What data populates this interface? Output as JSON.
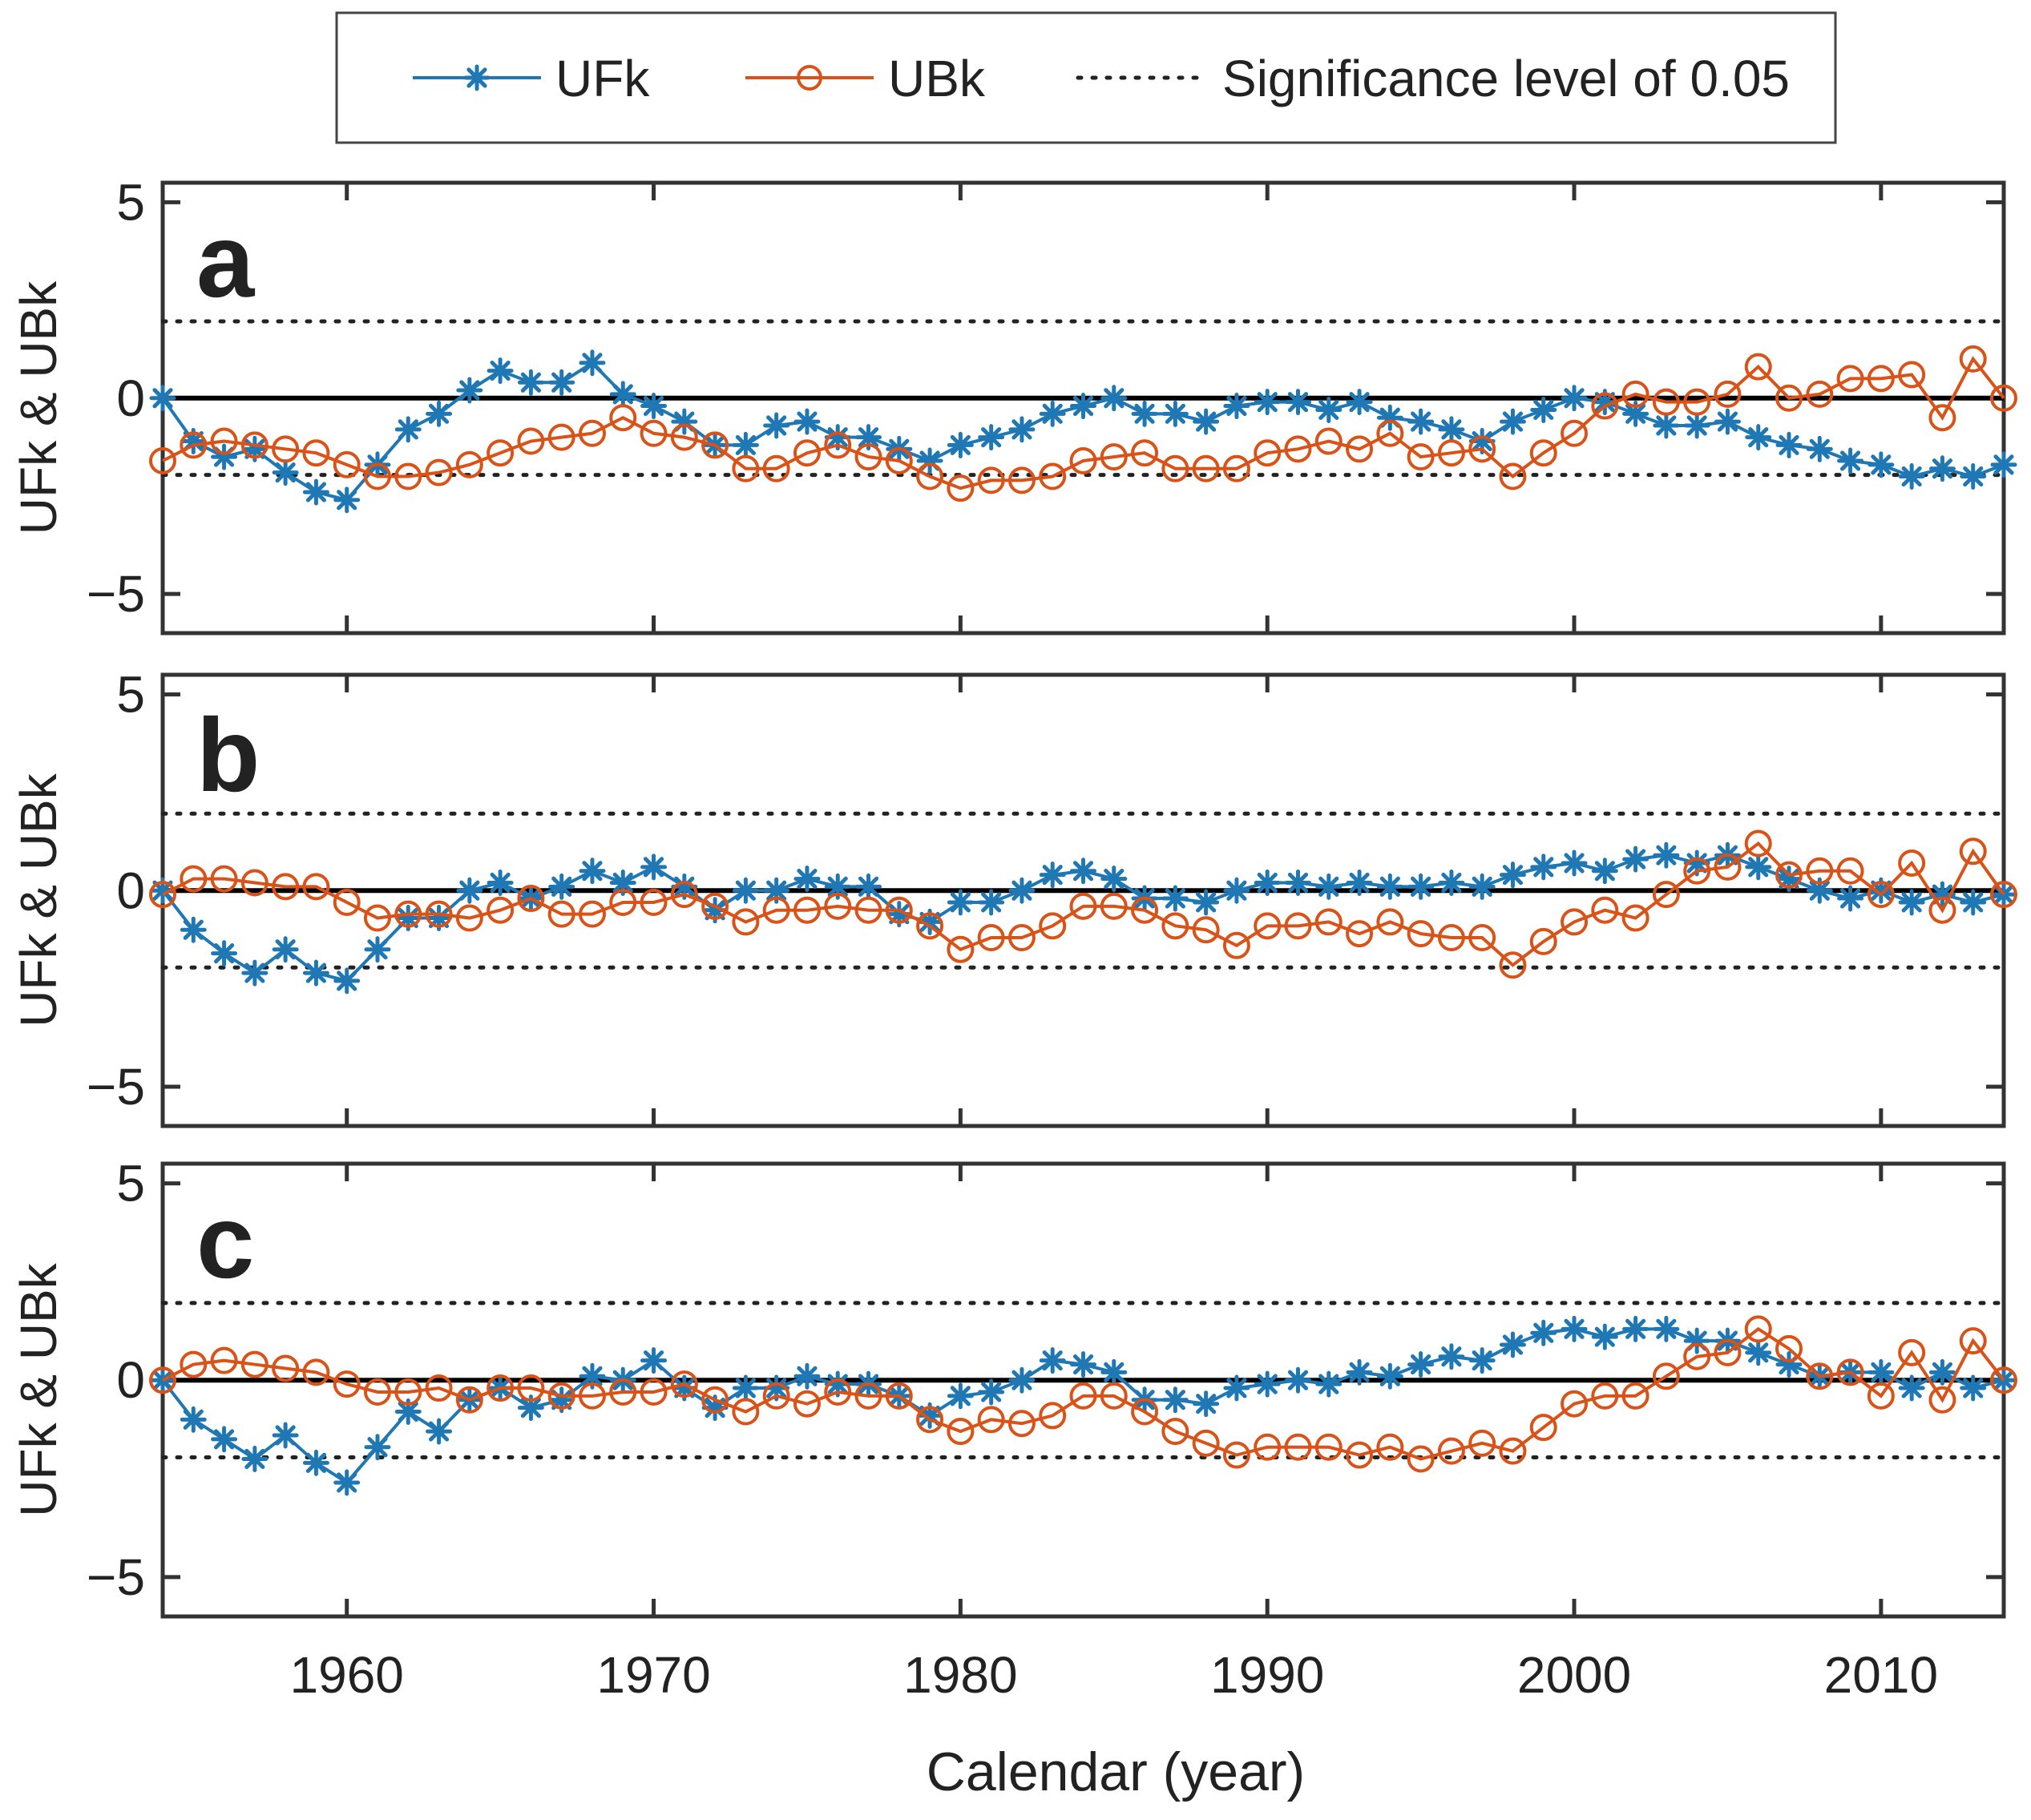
{
  "legend": {
    "ufk_label": "UFk",
    "ubk_label": "UBk",
    "sig_label": "Significance level of 0.05"
  },
  "xaxis": {
    "label": "Calendar (year)",
    "ticks": [
      1960,
      1970,
      1980,
      1990,
      2000,
      2010
    ],
    "tick_labels": [
      "1960",
      "1970",
      "1980",
      "1990",
      "2000",
      "2010"
    ]
  },
  "colors": {
    "ufk": "#1f77b4",
    "ubk": "#d95319",
    "axes": "#333333",
    "zero_line": "#000000"
  },
  "chart_data": [
    {
      "type": "line",
      "panel": "a",
      "title": "",
      "xlabel": "",
      "ylabel": "UFk & UBk",
      "xlim": [
        1954,
        2014
      ],
      "ylim": [
        -6,
        5.5
      ],
      "yticks": [
        -5,
        0,
        5
      ],
      "ytick_labels": [
        "−5",
        "0",
        "5"
      ],
      "significance_levels": [
        1.96,
        -1.96
      ],
      "x": [
        1954,
        1955,
        1956,
        1957,
        1958,
        1959,
        1960,
        1961,
        1962,
        1963,
        1964,
        1965,
        1966,
        1967,
        1968,
        1969,
        1970,
        1971,
        1972,
        1973,
        1974,
        1975,
        1976,
        1977,
        1978,
        1979,
        1980,
        1981,
        1982,
        1983,
        1984,
        1985,
        1986,
        1987,
        1988,
        1989,
        1990,
        1991,
        1992,
        1993,
        1994,
        1995,
        1996,
        1997,
        1998,
        1999,
        2000,
        2001,
        2002,
        2003,
        2004,
        2005,
        2006,
        2007,
        2008,
        2009,
        2010,
        2011,
        2012,
        2013,
        2014
      ],
      "series": [
        {
          "name": "UFk",
          "values": [
            0,
            -1.1,
            -1.5,
            -1.3,
            -1.9,
            -2.4,
            -2.6,
            -1.7,
            -0.8,
            -0.4,
            0.2,
            0.7,
            0.4,
            0.4,
            0.9,
            0.1,
            -0.2,
            -0.6,
            -1.2,
            -1.2,
            -0.7,
            -0.6,
            -1.0,
            -1.0,
            -1.3,
            -1.6,
            -1.2,
            -1.0,
            -0.8,
            -0.4,
            -0.2,
            0.0,
            -0.4,
            -0.4,
            -0.6,
            -0.2,
            -0.1,
            -0.1,
            -0.3,
            -0.1,
            -0.5,
            -0.6,
            -0.8,
            -1.1,
            -0.6,
            -0.3,
            0.0,
            -0.1,
            -0.4,
            -0.7,
            -0.7,
            -0.6,
            -1.0,
            -1.2,
            -1.3,
            -1.6,
            -1.7,
            -2.0,
            -1.8,
            -2.0,
            -1.7
          ]
        },
        {
          "name": "UBk",
          "values": [
            -1.6,
            -1.2,
            -1.1,
            -1.2,
            -1.3,
            -1.4,
            -1.7,
            -2.0,
            -2.0,
            -1.9,
            -1.7,
            -1.4,
            -1.1,
            -1.0,
            -0.9,
            -0.5,
            -0.9,
            -1.0,
            -1.2,
            -1.8,
            -1.8,
            -1.4,
            -1.2,
            -1.5,
            -1.6,
            -2.0,
            -2.3,
            -2.1,
            -2.1,
            -2.0,
            -1.6,
            -1.5,
            -1.4,
            -1.8,
            -1.8,
            -1.8,
            -1.4,
            -1.3,
            -1.1,
            -1.3,
            -0.9,
            -1.5,
            -1.4,
            -1.3,
            -2.0,
            -1.4,
            -0.9,
            -0.2,
            0.1,
            -0.1,
            -0.1,
            0.1,
            0.8,
            0.0,
            0.1,
            0.5,
            0.5,
            0.6,
            -0.5,
            1.0,
            0.0
          ]
        }
      ]
    },
    {
      "type": "line",
      "panel": "b",
      "title": "",
      "xlabel": "",
      "ylabel": "UFk & UBk",
      "xlim": [
        1954,
        2014
      ],
      "ylim": [
        -6,
        5.5
      ],
      "yticks": [
        -5,
        0,
        5
      ],
      "ytick_labels": [
        "−5",
        "0",
        "5"
      ],
      "significance_levels": [
        1.96,
        -1.96
      ],
      "x": [
        1954,
        1955,
        1956,
        1957,
        1958,
        1959,
        1960,
        1961,
        1962,
        1963,
        1964,
        1965,
        1966,
        1967,
        1968,
        1969,
        1970,
        1971,
        1972,
        1973,
        1974,
        1975,
        1976,
        1977,
        1978,
        1979,
        1980,
        1981,
        1982,
        1983,
        1984,
        1985,
        1986,
        1987,
        1988,
        1989,
        1990,
        1991,
        1992,
        1993,
        1994,
        1995,
        1996,
        1997,
        1998,
        1999,
        2000,
        2001,
        2002,
        2003,
        2004,
        2005,
        2006,
        2007,
        2008,
        2009,
        2010,
        2011,
        2012,
        2013,
        2014
      ],
      "series": [
        {
          "name": "UFk",
          "values": [
            0,
            -1.0,
            -1.6,
            -2.1,
            -1.5,
            -2.1,
            -2.3,
            -1.5,
            -0.7,
            -0.7,
            0.0,
            0.2,
            -0.2,
            0.1,
            0.5,
            0.2,
            0.6,
            0.1,
            -0.5,
            0.0,
            0.0,
            0.3,
            0.1,
            0.1,
            -0.6,
            -0.8,
            -0.3,
            -0.3,
            0.0,
            0.4,
            0.5,
            0.3,
            -0.2,
            -0.2,
            -0.3,
            0.0,
            0.2,
            0.2,
            0.1,
            0.2,
            0.1,
            0.1,
            0.2,
            0.1,
            0.4,
            0.6,
            0.7,
            0.5,
            0.8,
            0.9,
            0.7,
            0.9,
            0.6,
            0.3,
            0.0,
            -0.2,
            0.0,
            -0.3,
            -0.1,
            -0.3,
            -0.1
          ]
        },
        {
          "name": "UBk",
          "values": [
            -0.1,
            0.3,
            0.3,
            0.2,
            0.1,
            0.1,
            -0.3,
            -0.7,
            -0.6,
            -0.6,
            -0.7,
            -0.5,
            -0.2,
            -0.6,
            -0.6,
            -0.3,
            -0.3,
            -0.1,
            -0.4,
            -0.8,
            -0.5,
            -0.5,
            -0.4,
            -0.5,
            -0.5,
            -0.9,
            -1.5,
            -1.2,
            -1.2,
            -0.9,
            -0.4,
            -0.4,
            -0.5,
            -0.9,
            -1.0,
            -1.4,
            -0.9,
            -0.9,
            -0.8,
            -1.1,
            -0.8,
            -1.1,
            -1.2,
            -1.2,
            -1.9,
            -1.3,
            -0.8,
            -0.5,
            -0.7,
            -0.1,
            0.5,
            0.6,
            1.2,
            0.4,
            0.5,
            0.5,
            -0.1,
            0.7,
            -0.5,
            1.0,
            -0.1
          ]
        }
      ]
    },
    {
      "type": "line",
      "panel": "c",
      "title": "",
      "xlabel": "Calendar (year)",
      "ylabel": "UFk & UBk",
      "xlim": [
        1954,
        2014
      ],
      "ylim": [
        -6,
        5.5
      ],
      "yticks": [
        -5,
        0,
        5
      ],
      "ytick_labels": [
        "−5",
        "0",
        "5"
      ],
      "significance_levels": [
        1.96,
        -1.96
      ],
      "x": [
        1954,
        1955,
        1956,
        1957,
        1958,
        1959,
        1960,
        1961,
        1962,
        1963,
        1964,
        1965,
        1966,
        1967,
        1968,
        1969,
        1970,
        1971,
        1972,
        1973,
        1974,
        1975,
        1976,
        1977,
        1978,
        1979,
        1980,
        1981,
        1982,
        1983,
        1984,
        1985,
        1986,
        1987,
        1988,
        1989,
        1990,
        1991,
        1992,
        1993,
        1994,
        1995,
        1996,
        1997,
        1998,
        1999,
        2000,
        2001,
        2002,
        2003,
        2004,
        2005,
        2006,
        2007,
        2008,
        2009,
        2010,
        2011,
        2012,
        2013,
        2014
      ],
      "series": [
        {
          "name": "UFk",
          "values": [
            0,
            -1.0,
            -1.5,
            -2.0,
            -1.4,
            -2.1,
            -2.6,
            -1.7,
            -0.8,
            -1.3,
            -0.5,
            -0.2,
            -0.7,
            -0.5,
            0.1,
            0.0,
            0.5,
            -0.2,
            -0.7,
            -0.2,
            -0.2,
            0.1,
            -0.1,
            -0.1,
            -0.4,
            -0.9,
            -0.4,
            -0.3,
            0.0,
            0.5,
            0.4,
            0.2,
            -0.5,
            -0.5,
            -0.6,
            -0.2,
            -0.1,
            0.0,
            -0.1,
            0.2,
            0.1,
            0.4,
            0.6,
            0.5,
            0.9,
            1.2,
            1.3,
            1.1,
            1.3,
            1.3,
            1.0,
            1.0,
            0.7,
            0.4,
            0.1,
            0.2,
            0.2,
            -0.2,
            0.2,
            -0.2,
            0.0
          ]
        },
        {
          "name": "UBk",
          "values": [
            0.0,
            0.4,
            0.5,
            0.4,
            0.3,
            0.2,
            -0.1,
            -0.3,
            -0.3,
            -0.2,
            -0.5,
            -0.2,
            -0.2,
            -0.4,
            -0.4,
            -0.3,
            -0.3,
            -0.1,
            -0.5,
            -0.8,
            -0.4,
            -0.6,
            -0.3,
            -0.4,
            -0.4,
            -1.0,
            -1.3,
            -1.0,
            -1.1,
            -0.9,
            -0.4,
            -0.4,
            -0.8,
            -1.3,
            -1.6,
            -1.9,
            -1.7,
            -1.7,
            -1.7,
            -1.9,
            -1.7,
            -2.0,
            -1.8,
            -1.6,
            -1.8,
            -1.2,
            -0.6,
            -0.4,
            -0.4,
            0.1,
            0.6,
            0.7,
            1.3,
            0.8,
            0.1,
            0.2,
            -0.4,
            0.7,
            -0.5,
            1.0,
            0.0
          ]
        }
      ]
    }
  ]
}
